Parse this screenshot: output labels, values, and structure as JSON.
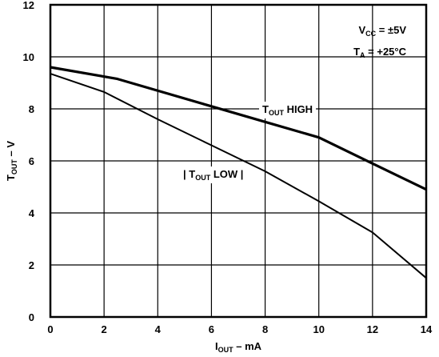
{
  "chart_data": {
    "type": "line",
    "x_axis": {
      "label_main": "I",
      "label_sub": "OUT",
      "label_rest": " – mA",
      "range": [
        0,
        14
      ],
      "ticks": [
        0,
        2,
        4,
        6,
        8,
        10,
        12,
        14
      ]
    },
    "y_axis": {
      "label_main": "T",
      "label_sub": "OUT",
      "label_rest": " – V",
      "range": [
        0,
        12
      ],
      "ticks": [
        0,
        2,
        4,
        6,
        8,
        10,
        12
      ]
    },
    "grid": true,
    "conditions": [
      {
        "main": "V",
        "sub": "CC",
        "rest": " = ±5V"
      },
      {
        "main": "T",
        "sub": "A",
        "rest": " = +25°C"
      }
    ],
    "series": [
      {
        "name": "TOUT HIGH",
        "label_prefix": "",
        "label_main": "T",
        "label_sub": "OUT",
        "label_rest": " HIGH",
        "label_suffix": "",
        "stroke": 3.2,
        "points": [
          [
            0,
            9.6
          ],
          [
            2.5,
            9.15
          ],
          [
            6,
            8.1
          ],
          [
            8,
            7.5
          ],
          [
            10,
            6.9
          ],
          [
            12,
            5.9
          ],
          [
            14,
            4.9
          ]
        ]
      },
      {
        "name": "|TOUT LOW|",
        "label_prefix": "| ",
        "label_main": "T",
        "label_sub": "OUT",
        "label_rest": " LOW",
        "label_suffix": " |",
        "stroke": 2,
        "points": [
          [
            0,
            9.35
          ],
          [
            2,
            8.65
          ],
          [
            4,
            7.6
          ],
          [
            6,
            6.6
          ],
          [
            8,
            5.6
          ],
          [
            10,
            4.45
          ],
          [
            12,
            3.25
          ],
          [
            14,
            1.5
          ]
        ]
      }
    ]
  }
}
